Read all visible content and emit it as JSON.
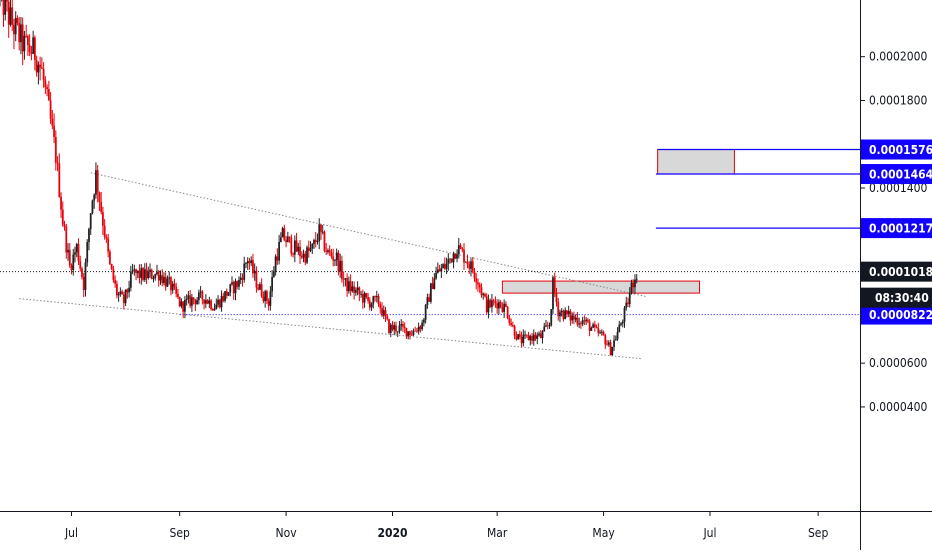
{
  "chart_data": {
    "type": "candlestick",
    "grid": false,
    "y_axis": {
      "range": [
        3e-05,
        0.00024
      ],
      "ticks": [
        {
          "value": 4e-05,
          "label": "0.0000400"
        },
        {
          "value": 6e-05,
          "label": "0.0000600"
        },
        {
          "value": 0.00014,
          "label": "0.0001400"
        },
        {
          "value": 0.00018,
          "label": "0.0001800"
        },
        {
          "value": 0.0002,
          "label": "0.0002000"
        }
      ]
    },
    "x_axis": {
      "range": [
        "2019-05-21",
        "2020-09-25"
      ],
      "ticks": [
        {
          "date": "2019-07-01",
          "label": "Jul",
          "bold": false
        },
        {
          "date": "2019-09-01",
          "label": "Sep",
          "bold": false
        },
        {
          "date": "2019-11-01",
          "label": "Nov",
          "bold": false
        },
        {
          "date": "2020-01-01",
          "label": "2020",
          "bold": true
        },
        {
          "date": "2020-03-01",
          "label": "Mar",
          "bold": false
        },
        {
          "date": "2020-05-01",
          "label": "May",
          "bold": false
        },
        {
          "date": "2020-07-01",
          "label": "Jul",
          "bold": false
        },
        {
          "date": "2020-09-01",
          "label": "Sep",
          "bold": false
        }
      ]
    },
    "colors": {
      "up": "#222222",
      "down": "#e8000b",
      "level_line": "#1100ff",
      "badge_blue": "#1100ff",
      "badge_black": "#131722",
      "zone_fill": "#d8d8d8",
      "zone_border": "#e8000b",
      "trendline": "#888888"
    },
    "price_levels": [
      {
        "value": 0.0001576,
        "label": "0.0001576",
        "from": "2020-06-01",
        "style": "solid"
      },
      {
        "value": 0.0001464,
        "label": "0.0001464",
        "from": "2020-05-31",
        "style": "solid"
      },
      {
        "value": 0.0001217,
        "label": "0.0001217",
        "from": "2020-05-31",
        "style": "solid"
      },
      {
        "value": 8.22e-05,
        "label": "0.0000822",
        "from": "2019-09-01",
        "style": "dotted"
      }
    ],
    "last_price": {
      "value": 0.0001018,
      "label": "0.0001018",
      "countdown": "08:30:40"
    },
    "zones": [
      {
        "from": "2020-06-01",
        "to": "2020-07-15",
        "low": 0.0001464,
        "high": 0.0001576
      },
      {
        "from": "2020-03-04",
        "to": "2020-06-25",
        "low": 9.2e-05,
        "high": 9.75e-05
      }
    ],
    "trendlines": [
      {
        "start": {
          "date": "2019-07-12",
          "value": 0.000147
        },
        "end": {
          "date": "2020-05-25",
          "value": 9.05e-05
        }
      },
      {
        "start": {
          "date": "2019-06-01",
          "value": 8.95e-05
        },
        "end": {
          "date": "2020-05-23",
          "value": 6.2e-05
        }
      }
    ],
    "series": [
      {
        "anchors": [
          [
            "2019-05-21",
            0.000228
          ],
          [
            "2019-05-28",
            0.000215
          ],
          [
            "2019-06-04",
            0.000205
          ],
          [
            "2019-06-10",
            0.000202
          ],
          [
            "2019-06-14",
            0.000193
          ],
          [
            "2019-06-18",
            0.000175
          ],
          [
            "2019-06-22",
            0.000155
          ],
          [
            "2019-06-26",
            0.000125
          ],
          [
            "2019-06-30",
            0.000104
          ],
          [
            "2019-07-04",
            0.000113
          ],
          [
            "2019-07-08",
            9.6e-05
          ],
          [
            "2019-07-12",
            0.00013
          ],
          [
            "2019-07-15",
            0.000146
          ],
          [
            "2019-07-19",
            0.000125
          ],
          [
            "2019-07-23",
            0.000104
          ],
          [
            "2019-07-27",
            9.2e-05
          ],
          [
            "2019-07-31",
            8.8e-05
          ],
          [
            "2019-08-05",
            0.000101
          ],
          [
            "2019-08-12",
            0.0001
          ],
          [
            "2019-08-20",
            0.000101
          ],
          [
            "2019-08-27",
            9.5e-05
          ],
          [
            "2019-09-02",
            8.6e-05
          ],
          [
            "2019-09-08",
            8.9e-05
          ],
          [
            "2019-09-15",
            9e-05
          ],
          [
            "2019-09-21",
            8.6e-05
          ],
          [
            "2019-09-28",
            9.2e-05
          ],
          [
            "2019-10-05",
            9.7e-05
          ],
          [
            "2019-10-10",
            0.000108
          ],
          [
            "2019-10-16",
            9.5e-05
          ],
          [
            "2019-10-22",
            8.8e-05
          ],
          [
            "2019-10-26",
            0.000108
          ],
          [
            "2019-10-30",
            0.000118
          ],
          [
            "2019-11-05",
            0.000113
          ],
          [
            "2019-11-11",
            0.000109
          ],
          [
            "2019-11-16",
            0.000112
          ],
          [
            "2019-11-20",
            0.00012
          ],
          [
            "2019-11-25",
            0.00011
          ],
          [
            "2019-11-30",
            0.000108
          ],
          [
            "2019-12-05",
            9.6e-05
          ],
          [
            "2019-12-12",
            9.2e-05
          ],
          [
            "2019-12-18",
            8.8e-05
          ],
          [
            "2019-12-24",
            8.8e-05
          ],
          [
            "2019-12-30",
            7.6e-05
          ],
          [
            "2020-01-05",
            7.6e-05
          ],
          [
            "2020-01-12",
            7.4e-05
          ],
          [
            "2020-01-18",
            7.8e-05
          ],
          [
            "2020-01-25",
            0.0001
          ],
          [
            "2020-02-01",
            0.000105
          ],
          [
            "2020-02-07",
            0.000113
          ],
          [
            "2020-02-12",
            0.000108
          ],
          [
            "2020-02-18",
            0.0001
          ],
          [
            "2020-02-24",
            8.6e-05
          ],
          [
            "2020-03-01",
            8.8e-05
          ],
          [
            "2020-03-06",
            8.5e-05
          ],
          [
            "2020-03-10",
            7.6e-05
          ],
          [
            "2020-03-14",
            7e-05
          ],
          [
            "2020-03-20",
            7.2e-05
          ],
          [
            "2020-03-26",
            7.2e-05
          ],
          [
            "2020-03-31",
            7.8e-05
          ],
          [
            "2020-04-02",
            9.6e-05
          ],
          [
            "2020-04-05",
            8.4e-05
          ],
          [
            "2020-04-12",
            8.1e-05
          ],
          [
            "2020-04-20",
            7.9e-05
          ],
          [
            "2020-04-27",
            7.4e-05
          ],
          [
            "2020-05-01",
            7.2e-05
          ],
          [
            "2020-05-05",
            6.6e-05
          ],
          [
            "2020-05-10",
            7.6e-05
          ],
          [
            "2020-05-14",
            8.5e-05
          ],
          [
            "2020-05-17",
            9.5e-05
          ],
          [
            "2020-05-20",
            0.0001018
          ]
        ]
      }
    ]
  }
}
